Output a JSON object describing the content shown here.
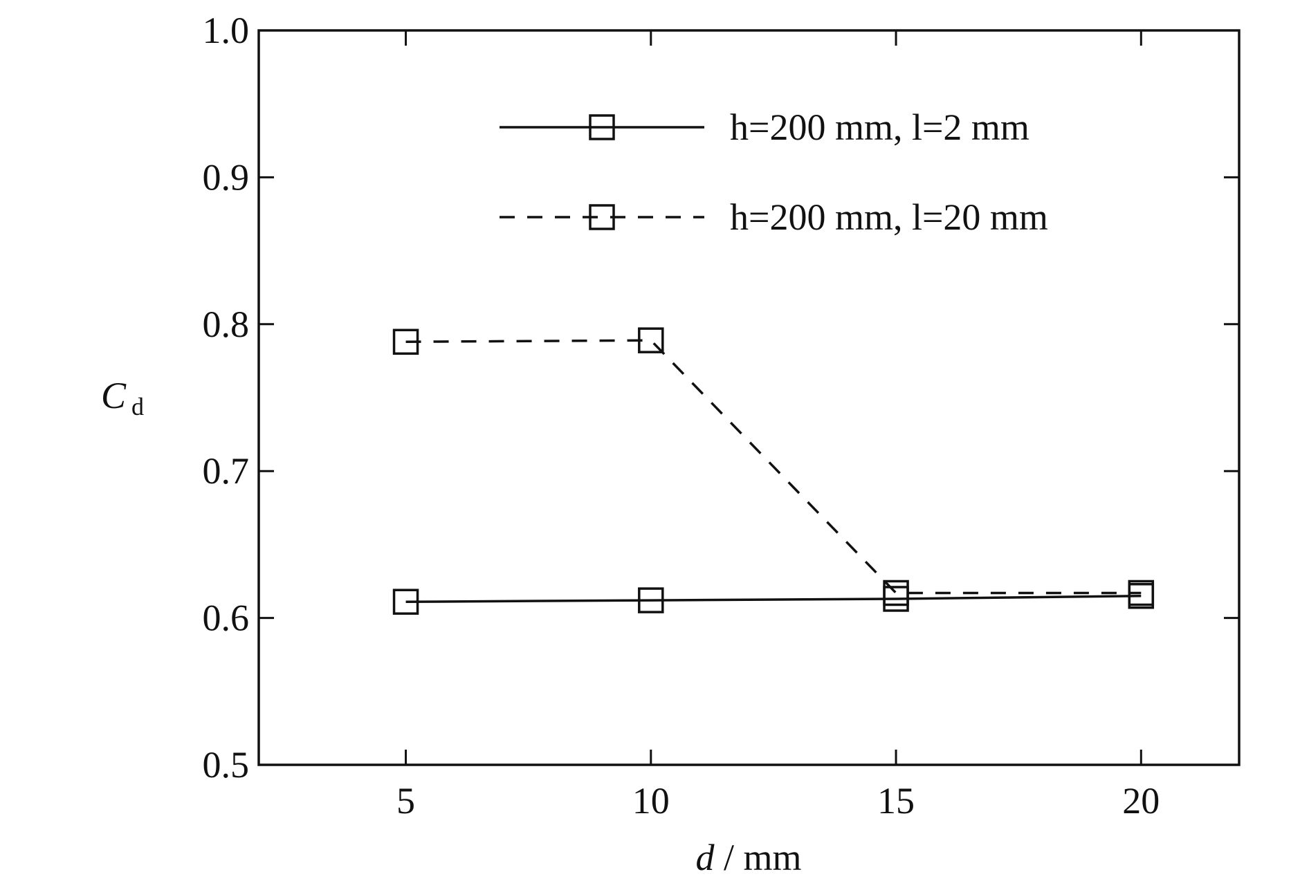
{
  "chart_data": {
    "type": "line",
    "xlabel": "d / mm",
    "ylabel": "Cd",
    "x": [
      5,
      10,
      15,
      20
    ],
    "series": [
      {
        "name": "h=200 mm, l=2 mm",
        "color": "#111111",
        "dash": "solid",
        "marker": "square",
        "values": [
          0.611,
          0.612,
          0.613,
          0.615
        ]
      },
      {
        "name": "h=200 mm, l=20 mm",
        "color": "#111111",
        "dash": "dashed",
        "marker": "square",
        "values": [
          0.788,
          0.789,
          0.617,
          0.617
        ]
      }
    ],
    "xlim": [
      2,
      22
    ],
    "xticks": [
      5,
      10,
      15,
      20
    ],
    "ylim": [
      0.5,
      1.0
    ],
    "yticks": [
      0.5,
      0.6,
      0.7,
      0.8,
      0.9,
      {
        "value": 1.0,
        "label": "1.0"
      }
    ],
    "legend": "upper-right",
    "grid": false
  }
}
